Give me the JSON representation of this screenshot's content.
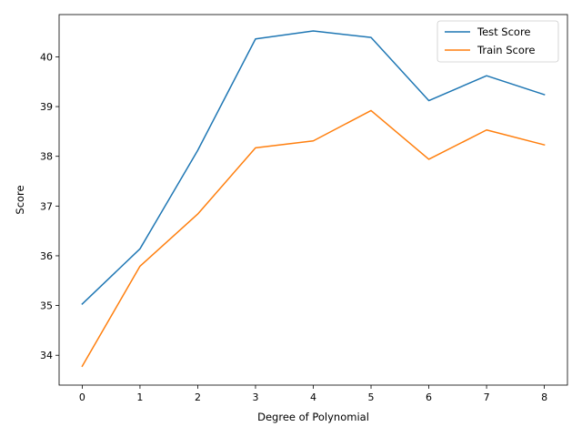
{
  "chart_data": {
    "type": "line",
    "title": "",
    "xlabel": "Degree of Polynomial",
    "ylabel": "Score",
    "x": [
      0,
      1,
      2,
      3,
      4,
      5,
      6,
      7,
      8
    ],
    "xlim": [
      -0.4,
      8.4
    ],
    "ylim": [
      33.4,
      40.85
    ],
    "xticks": [
      0,
      1,
      2,
      3,
      4,
      5,
      6,
      7,
      8
    ],
    "yticks": [
      34,
      35,
      36,
      37,
      38,
      39,
      40
    ],
    "grid": false,
    "legend": "top-right",
    "series": [
      {
        "name": "Test Score",
        "color": "#1f77b4",
        "values": [
          35.03,
          36.14,
          38.12,
          40.36,
          40.52,
          40.39,
          39.12,
          39.62,
          39.24
        ]
      },
      {
        "name": "Train Score",
        "color": "#ff7f0e",
        "values": [
          33.78,
          35.79,
          36.84,
          38.17,
          38.31,
          38.92,
          37.94,
          38.53,
          38.23
        ]
      }
    ]
  }
}
